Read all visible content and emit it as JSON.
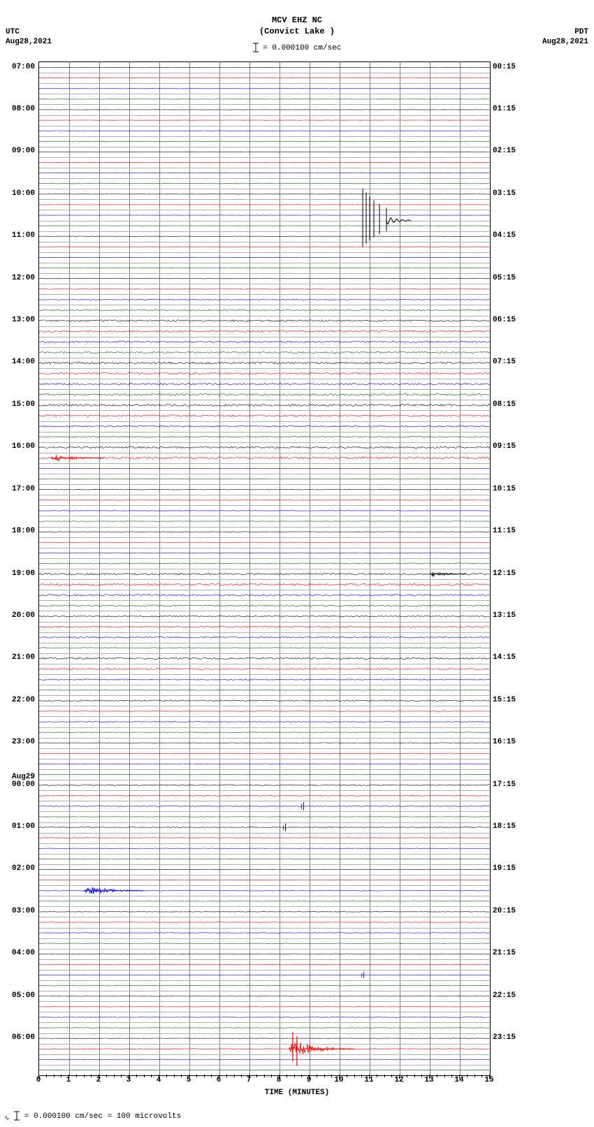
{
  "station": {
    "code": "MCV EHZ NC",
    "name": "(Convict Lake )"
  },
  "scale": {
    "text": "= 0.000100 cm/sec",
    "bar_color": "#000000"
  },
  "timezone_left": "UTC",
  "timezone_right": "PDT",
  "date_left": "Aug28,2021",
  "date_right": "Aug28,2021",
  "day_break_label": "Aug29",
  "x_axis_label": "TIME (MINUTES)",
  "x_ticks": [
    0,
    1,
    2,
    3,
    4,
    5,
    6,
    7,
    8,
    9,
    10,
    11,
    12,
    13,
    14,
    15
  ],
  "footer_text": "= 0.000100 cm/sec =    100 microvolts",
  "plot": {
    "bg_color": "#ffffff",
    "grid_color": "#808080",
    "hgrid_color": "#b0b0b0",
    "num_traces": 96,
    "minutes": 15
  },
  "trace_colors": [
    "#000000",
    "#ff0000",
    "#0000ff",
    "#006400"
  ],
  "left_labels": [
    {
      "idx": 0,
      "text": "07:00"
    },
    {
      "idx": 4,
      "text": "08:00"
    },
    {
      "idx": 8,
      "text": "09:00"
    },
    {
      "idx": 12,
      "text": "10:00"
    },
    {
      "idx": 16,
      "text": "11:00"
    },
    {
      "idx": 20,
      "text": "12:00"
    },
    {
      "idx": 24,
      "text": "13:00"
    },
    {
      "idx": 28,
      "text": "14:00"
    },
    {
      "idx": 32,
      "text": "15:00"
    },
    {
      "idx": 36,
      "text": "16:00"
    },
    {
      "idx": 40,
      "text": "17:00"
    },
    {
      "idx": 44,
      "text": "18:00"
    },
    {
      "idx": 48,
      "text": "19:00"
    },
    {
      "idx": 52,
      "text": "20:00"
    },
    {
      "idx": 56,
      "text": "21:00"
    },
    {
      "idx": 60,
      "text": "22:00"
    },
    {
      "idx": 64,
      "text": "23:00"
    },
    {
      "idx": 68,
      "text": "00:00"
    },
    {
      "idx": 72,
      "text": "01:00"
    },
    {
      "idx": 76,
      "text": "02:00"
    },
    {
      "idx": 80,
      "text": "03:00"
    },
    {
      "idx": 84,
      "text": "04:00"
    },
    {
      "idx": 88,
      "text": "05:00"
    },
    {
      "idx": 92,
      "text": "06:00"
    }
  ],
  "right_labels": [
    {
      "idx": 0,
      "text": "00:15"
    },
    {
      "idx": 4,
      "text": "01:15"
    },
    {
      "idx": 8,
      "text": "02:15"
    },
    {
      "idx": 12,
      "text": "03:15"
    },
    {
      "idx": 16,
      "text": "04:15"
    },
    {
      "idx": 20,
      "text": "05:15"
    },
    {
      "idx": 24,
      "text": "06:15"
    },
    {
      "idx": 28,
      "text": "07:15"
    },
    {
      "idx": 32,
      "text": "08:15"
    },
    {
      "idx": 36,
      "text": "09:15"
    },
    {
      "idx": 40,
      "text": "10:15"
    },
    {
      "idx": 44,
      "text": "11:15"
    },
    {
      "idx": 48,
      "text": "12:15"
    },
    {
      "idx": 52,
      "text": "13:15"
    },
    {
      "idx": 56,
      "text": "14:15"
    },
    {
      "idx": 60,
      "text": "15:15"
    },
    {
      "idx": 64,
      "text": "16:15"
    },
    {
      "idx": 68,
      "text": "17:15"
    },
    {
      "idx": 72,
      "text": "18:15"
    },
    {
      "idx": 76,
      "text": "19:15"
    },
    {
      "idx": 80,
      "text": "20:15"
    },
    {
      "idx": 84,
      "text": "21:15"
    },
    {
      "idx": 88,
      "text": "22:15"
    },
    {
      "idx": 92,
      "text": "23:15"
    }
  ],
  "day_break_trace": 68,
  "noise_levels": [
    0.2,
    0.2,
    0.2,
    0.2,
    0.2,
    0.2,
    0.2,
    0.2,
    0.2,
    0.2,
    0.2,
    0.2,
    0.2,
    0.2,
    0.2,
    0.2,
    0.2,
    0.2,
    0.2,
    0.2,
    0.3,
    0.4,
    0.6,
    0.8,
    1.2,
    1.3,
    1.2,
    1.2,
    1.3,
    1.2,
    1.2,
    1.3,
    1.4,
    1.3,
    1.0,
    0.8,
    1.2,
    1.5,
    0.3,
    0.3,
    0.3,
    0.3,
    0.3,
    0.3,
    0.3,
    0.3,
    0.3,
    0.6,
    1.2,
    1.4,
    1.2,
    0.9,
    0.8,
    1.2,
    1.0,
    0.6,
    1.2,
    1.0,
    0.8,
    0.5,
    0.8,
    0.4,
    0.6,
    0.3,
    0.3,
    0.3,
    0.5,
    0.3,
    0.8,
    0.6,
    0.6,
    0.3,
    0.5,
    0.5,
    0.3,
    0.4,
    0.3,
    0.3,
    0.5,
    0.3,
    0.3,
    0.3,
    0.4,
    0.3,
    0.3,
    0.3,
    0.3,
    0.4,
    0.3,
    0.3,
    0.3,
    0.3,
    0.3,
    0.6,
    0.3,
    0.3
  ],
  "events": [
    {
      "type": "spike_complex",
      "trace_start": 9,
      "trace_end": 20,
      "minute": 11.0,
      "width_min": 0.6,
      "amplitude_traces": 5,
      "color": "#000000"
    },
    {
      "type": "burst",
      "trace": 37,
      "minute_start": 0.4,
      "minute_end": 2.2,
      "amplitude": 2.5,
      "color": "#ff0000"
    },
    {
      "type": "burst",
      "trace": 48,
      "minute_start": 13.0,
      "minute_end": 14.2,
      "amplitude": 2.2,
      "color": "#000000"
    },
    {
      "type": "burst",
      "trace": 78,
      "minute_start": 1.5,
      "minute_end": 3.5,
      "amplitude": 3.5,
      "color": "#0000ff"
    },
    {
      "type": "burst",
      "trace": 93,
      "minute_start": 8.3,
      "minute_end": 10.5,
      "amplitude": 6,
      "color": "#ff0000",
      "tail_len": 5
    },
    {
      "type": "small_spike",
      "trace": 70,
      "minute": 8.8,
      "amplitude": 2,
      "color": "#0000ff"
    },
    {
      "type": "small_spike",
      "trace": 72,
      "minute": 8.2,
      "amplitude": 1.8,
      "color": "#000000"
    },
    {
      "type": "small_spike",
      "trace": 86,
      "minute": 10.8,
      "amplitude": 1.5,
      "color": "#0000ff"
    }
  ]
}
